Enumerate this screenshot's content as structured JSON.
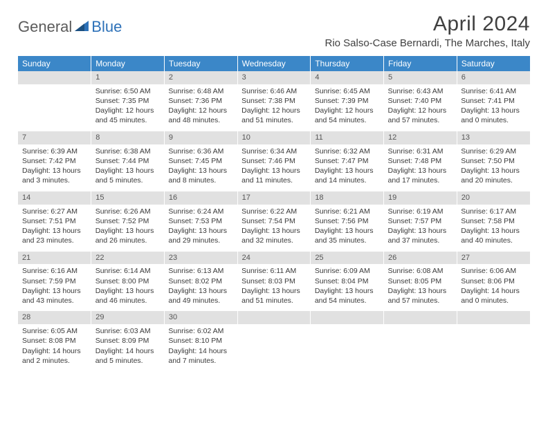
{
  "logo": {
    "general": "General",
    "blue": "Blue"
  },
  "title": "April 2024",
  "location": "Rio Salso-Case Bernardi, The Marches, Italy",
  "colors": {
    "header_bg": "#3b87c8",
    "header_text": "#ffffff",
    "daynum_bg": "#e1e1e1",
    "text": "#3a3a3a",
    "logo_gray": "#5b5b5b",
    "logo_blue": "#2d71b8"
  },
  "weekdays": [
    "Sunday",
    "Monday",
    "Tuesday",
    "Wednesday",
    "Thursday",
    "Friday",
    "Saturday"
  ],
  "weeks": [
    [
      {
        "n": "",
        "lines": []
      },
      {
        "n": "1",
        "lines": [
          "Sunrise: 6:50 AM",
          "Sunset: 7:35 PM",
          "Daylight: 12 hours",
          "and 45 minutes."
        ]
      },
      {
        "n": "2",
        "lines": [
          "Sunrise: 6:48 AM",
          "Sunset: 7:36 PM",
          "Daylight: 12 hours",
          "and 48 minutes."
        ]
      },
      {
        "n": "3",
        "lines": [
          "Sunrise: 6:46 AM",
          "Sunset: 7:38 PM",
          "Daylight: 12 hours",
          "and 51 minutes."
        ]
      },
      {
        "n": "4",
        "lines": [
          "Sunrise: 6:45 AM",
          "Sunset: 7:39 PM",
          "Daylight: 12 hours",
          "and 54 minutes."
        ]
      },
      {
        "n": "5",
        "lines": [
          "Sunrise: 6:43 AM",
          "Sunset: 7:40 PM",
          "Daylight: 12 hours",
          "and 57 minutes."
        ]
      },
      {
        "n": "6",
        "lines": [
          "Sunrise: 6:41 AM",
          "Sunset: 7:41 PM",
          "Daylight: 13 hours",
          "and 0 minutes."
        ]
      }
    ],
    [
      {
        "n": "7",
        "lines": [
          "Sunrise: 6:39 AM",
          "Sunset: 7:42 PM",
          "Daylight: 13 hours",
          "and 3 minutes."
        ]
      },
      {
        "n": "8",
        "lines": [
          "Sunrise: 6:38 AM",
          "Sunset: 7:44 PM",
          "Daylight: 13 hours",
          "and 5 minutes."
        ]
      },
      {
        "n": "9",
        "lines": [
          "Sunrise: 6:36 AM",
          "Sunset: 7:45 PM",
          "Daylight: 13 hours",
          "and 8 minutes."
        ]
      },
      {
        "n": "10",
        "lines": [
          "Sunrise: 6:34 AM",
          "Sunset: 7:46 PM",
          "Daylight: 13 hours",
          "and 11 minutes."
        ]
      },
      {
        "n": "11",
        "lines": [
          "Sunrise: 6:32 AM",
          "Sunset: 7:47 PM",
          "Daylight: 13 hours",
          "and 14 minutes."
        ]
      },
      {
        "n": "12",
        "lines": [
          "Sunrise: 6:31 AM",
          "Sunset: 7:48 PM",
          "Daylight: 13 hours",
          "and 17 minutes."
        ]
      },
      {
        "n": "13",
        "lines": [
          "Sunrise: 6:29 AM",
          "Sunset: 7:50 PM",
          "Daylight: 13 hours",
          "and 20 minutes."
        ]
      }
    ],
    [
      {
        "n": "14",
        "lines": [
          "Sunrise: 6:27 AM",
          "Sunset: 7:51 PM",
          "Daylight: 13 hours",
          "and 23 minutes."
        ]
      },
      {
        "n": "15",
        "lines": [
          "Sunrise: 6:26 AM",
          "Sunset: 7:52 PM",
          "Daylight: 13 hours",
          "and 26 minutes."
        ]
      },
      {
        "n": "16",
        "lines": [
          "Sunrise: 6:24 AM",
          "Sunset: 7:53 PM",
          "Daylight: 13 hours",
          "and 29 minutes."
        ]
      },
      {
        "n": "17",
        "lines": [
          "Sunrise: 6:22 AM",
          "Sunset: 7:54 PM",
          "Daylight: 13 hours",
          "and 32 minutes."
        ]
      },
      {
        "n": "18",
        "lines": [
          "Sunrise: 6:21 AM",
          "Sunset: 7:56 PM",
          "Daylight: 13 hours",
          "and 35 minutes."
        ]
      },
      {
        "n": "19",
        "lines": [
          "Sunrise: 6:19 AM",
          "Sunset: 7:57 PM",
          "Daylight: 13 hours",
          "and 37 minutes."
        ]
      },
      {
        "n": "20",
        "lines": [
          "Sunrise: 6:17 AM",
          "Sunset: 7:58 PM",
          "Daylight: 13 hours",
          "and 40 minutes."
        ]
      }
    ],
    [
      {
        "n": "21",
        "lines": [
          "Sunrise: 6:16 AM",
          "Sunset: 7:59 PM",
          "Daylight: 13 hours",
          "and 43 minutes."
        ]
      },
      {
        "n": "22",
        "lines": [
          "Sunrise: 6:14 AM",
          "Sunset: 8:00 PM",
          "Daylight: 13 hours",
          "and 46 minutes."
        ]
      },
      {
        "n": "23",
        "lines": [
          "Sunrise: 6:13 AM",
          "Sunset: 8:02 PM",
          "Daylight: 13 hours",
          "and 49 minutes."
        ]
      },
      {
        "n": "24",
        "lines": [
          "Sunrise: 6:11 AM",
          "Sunset: 8:03 PM",
          "Daylight: 13 hours",
          "and 51 minutes."
        ]
      },
      {
        "n": "25",
        "lines": [
          "Sunrise: 6:09 AM",
          "Sunset: 8:04 PM",
          "Daylight: 13 hours",
          "and 54 minutes."
        ]
      },
      {
        "n": "26",
        "lines": [
          "Sunrise: 6:08 AM",
          "Sunset: 8:05 PM",
          "Daylight: 13 hours",
          "and 57 minutes."
        ]
      },
      {
        "n": "27",
        "lines": [
          "Sunrise: 6:06 AM",
          "Sunset: 8:06 PM",
          "Daylight: 14 hours",
          "and 0 minutes."
        ]
      }
    ],
    [
      {
        "n": "28",
        "lines": [
          "Sunrise: 6:05 AM",
          "Sunset: 8:08 PM",
          "Daylight: 14 hours",
          "and 2 minutes."
        ]
      },
      {
        "n": "29",
        "lines": [
          "Sunrise: 6:03 AM",
          "Sunset: 8:09 PM",
          "Daylight: 14 hours",
          "and 5 minutes."
        ]
      },
      {
        "n": "30",
        "lines": [
          "Sunrise: 6:02 AM",
          "Sunset: 8:10 PM",
          "Daylight: 14 hours",
          "and 7 minutes."
        ]
      },
      {
        "n": "",
        "lines": []
      },
      {
        "n": "",
        "lines": []
      },
      {
        "n": "",
        "lines": []
      },
      {
        "n": "",
        "lines": []
      }
    ]
  ]
}
